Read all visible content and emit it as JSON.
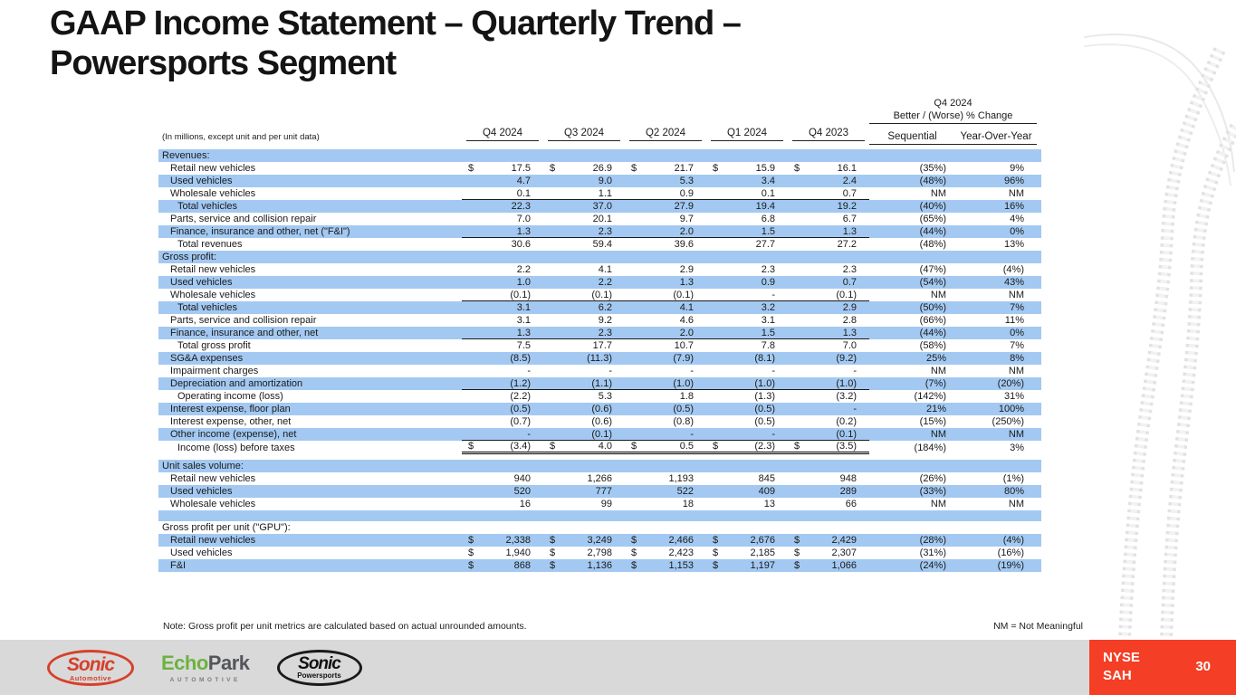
{
  "title": {
    "lines": [
      "GAAP Income Statement – Quarterly Trend –",
      "Powersports Segment"
    ]
  },
  "table": {
    "units_note": "(In millions, except unit and per unit data)",
    "group_header": {
      "line1": "Q4 2024",
      "line2": "Better / (Worse) % Change"
    },
    "columns": [
      "Q4 2024",
      "Q3 2024",
      "Q2 2024",
      "Q1 2024",
      "Q4 2023"
    ],
    "pct_columns": [
      "Sequential",
      "Year-Over-Year"
    ],
    "rows": [
      {
        "kind": "section",
        "label": "Revenues:",
        "shade": "blue"
      },
      {
        "label": "Retail new vehicles",
        "indent": 1,
        "dollar": true,
        "values": [
          "17.5",
          "26.9",
          "21.7",
          "15.9",
          "16.1"
        ],
        "seq": "(35%)",
        "yoy": "9%",
        "shade": "white"
      },
      {
        "label": "Used vehicles",
        "indent": 1,
        "values": [
          "4.7",
          "9.0",
          "5.3",
          "3.4",
          "2.4"
        ],
        "seq": "(48%)",
        "yoy": "96%",
        "shade": "blue"
      },
      {
        "label": "Wholesale vehicles",
        "indent": 1,
        "values": [
          "0.1",
          "1.1",
          "0.9",
          "0.1",
          "0.7"
        ],
        "seq": "NM",
        "yoy": "NM",
        "shade": "white",
        "underline": "single"
      },
      {
        "label": "Total vehicles",
        "indent": 2,
        "values": [
          "22.3",
          "37.0",
          "27.9",
          "19.4",
          "19.2"
        ],
        "seq": "(40%)",
        "yoy": "16%",
        "shade": "blue"
      },
      {
        "label": "Parts, service and collision repair",
        "indent": 1,
        "values": [
          "7.0",
          "20.1",
          "9.7",
          "6.8",
          "6.7"
        ],
        "seq": "(65%)",
        "yoy": "4%",
        "shade": "white"
      },
      {
        "label": "Finance, insurance and other, net (\"F&I\")",
        "indent": 1,
        "values": [
          "1.3",
          "2.3",
          "2.0",
          "1.5",
          "1.3"
        ],
        "seq": "(44%)",
        "yoy": "0%",
        "shade": "blue",
        "underline": "single"
      },
      {
        "label": "Total revenues",
        "indent": 2,
        "values": [
          "30.6",
          "59.4",
          "39.6",
          "27.7",
          "27.2"
        ],
        "seq": "(48%)",
        "yoy": "13%",
        "shade": "white"
      },
      {
        "kind": "section",
        "label": "Gross profit:",
        "shade": "blue"
      },
      {
        "label": "Retail new vehicles",
        "indent": 1,
        "values": [
          "2.2",
          "4.1",
          "2.9",
          "2.3",
          "2.3"
        ],
        "seq": "(47%)",
        "yoy": "(4%)",
        "shade": "white"
      },
      {
        "label": "Used vehicles",
        "indent": 1,
        "values": [
          "1.0",
          "2.2",
          "1.3",
          "0.9",
          "0.7"
        ],
        "seq": "(54%)",
        "yoy": "43%",
        "shade": "blue"
      },
      {
        "label": "Wholesale vehicles",
        "indent": 1,
        "values": [
          "(0.1)",
          "(0.1)",
          "(0.1)",
          "-",
          "(0.1)"
        ],
        "seq": "NM",
        "yoy": "NM",
        "shade": "white",
        "underline": "single"
      },
      {
        "label": "Total vehicles",
        "indent": 2,
        "values": [
          "3.1",
          "6.2",
          "4.1",
          "3.2",
          "2.9"
        ],
        "seq": "(50%)",
        "yoy": "7%",
        "shade": "blue"
      },
      {
        "label": "Parts, service and collision repair",
        "indent": 1,
        "values": [
          "3.1",
          "9.2",
          "4.6",
          "3.1",
          "2.8"
        ],
        "seq": "(66%)",
        "yoy": "11%",
        "shade": "white"
      },
      {
        "label": "Finance, insurance and other, net",
        "indent": 1,
        "values": [
          "1.3",
          "2.3",
          "2.0",
          "1.5",
          "1.3"
        ],
        "seq": "(44%)",
        "yoy": "0%",
        "shade": "blue",
        "underline": "single"
      },
      {
        "label": "Total gross profit",
        "indent": 2,
        "values": [
          "7.5",
          "17.7",
          "10.7",
          "7.8",
          "7.0"
        ],
        "seq": "(58%)",
        "yoy": "7%",
        "shade": "white"
      },
      {
        "label": "SG&A expenses",
        "indent": 1,
        "values": [
          "(8.5)",
          "(11.3)",
          "(7.9)",
          "(8.1)",
          "(9.2)"
        ],
        "seq": "25%",
        "yoy": "8%",
        "shade": "blue"
      },
      {
        "label": "Impairment charges",
        "indent": 1,
        "values": [
          "-",
          "-",
          "-",
          "-",
          "-"
        ],
        "seq": "NM",
        "yoy": "NM",
        "shade": "white"
      },
      {
        "label": "Depreciation and amortization",
        "indent": 1,
        "values": [
          "(1.2)",
          "(1.1)",
          "(1.0)",
          "(1.0)",
          "(1.0)"
        ],
        "seq": "(7%)",
        "yoy": "(20%)",
        "shade": "blue",
        "underline": "single"
      },
      {
        "label": "Operating income (loss)",
        "indent": 2,
        "values": [
          "(2.2)",
          "5.3",
          "1.8",
          "(1.3)",
          "(3.2)"
        ],
        "seq": "(142%)",
        "yoy": "31%",
        "shade": "white"
      },
      {
        "label": "Interest expense, floor plan",
        "indent": 1,
        "values": [
          "(0.5)",
          "(0.6)",
          "(0.5)",
          "(0.5)",
          "-"
        ],
        "seq": "21%",
        "yoy": "100%",
        "shade": "blue"
      },
      {
        "label": "Interest expense, other, net",
        "indent": 1,
        "values": [
          "(0.7)",
          "(0.6)",
          "(0.8)",
          "(0.5)",
          "(0.2)"
        ],
        "seq": "(15%)",
        "yoy": "(250%)",
        "shade": "white"
      },
      {
        "label": "Other income (expense), net",
        "indent": 1,
        "values": [
          "-",
          "(0.1)",
          "-",
          "-",
          "(0.1)"
        ],
        "seq": "NM",
        "yoy": "NM",
        "shade": "blue",
        "underline": "single"
      },
      {
        "label": "Income (loss) before taxes",
        "indent": 2,
        "dollar": true,
        "values": [
          "(3.4)",
          "4.0",
          "0.5",
          "(2.3)",
          "(3.5)"
        ],
        "seq": "(184%)",
        "yoy": "3%",
        "shade": "white",
        "underline": "double"
      },
      {
        "kind": "gap",
        "shade": "white",
        "h": 7
      },
      {
        "kind": "section",
        "label": "Unit sales volume:",
        "shade": "blue"
      },
      {
        "label": "Retail new vehicles",
        "indent": 1,
        "values": [
          "940",
          "1,266",
          "1,193",
          "845",
          "948"
        ],
        "seq": "(26%)",
        "yoy": "(1%)",
        "shade": "white"
      },
      {
        "label": "Used vehicles",
        "indent": 1,
        "values": [
          "520",
          "777",
          "522",
          "409",
          "289"
        ],
        "seq": "(33%)",
        "yoy": "80%",
        "shade": "blue"
      },
      {
        "label": "Wholesale vehicles",
        "indent": 1,
        "values": [
          "16",
          "99",
          "18",
          "13",
          "66"
        ],
        "seq": "NM",
        "yoy": "NM",
        "shade": "white"
      },
      {
        "kind": "gap",
        "shade": "blue",
        "h": 12
      },
      {
        "kind": "section",
        "label": "Gross profit per unit (\"GPU\"):",
        "shade": "white"
      },
      {
        "label": "Retail new vehicles",
        "indent": 1,
        "dollar": true,
        "values": [
          "2,338",
          "3,249",
          "2,466",
          "2,676",
          "2,429"
        ],
        "seq": "(28%)",
        "yoy": "(4%)",
        "shade": "blue"
      },
      {
        "label": "Used vehicles",
        "indent": 1,
        "dollar": true,
        "values": [
          "1,940",
          "2,798",
          "2,423",
          "2,185",
          "2,307"
        ],
        "seq": "(31%)",
        "yoy": "(16%)",
        "shade": "white"
      },
      {
        "label": "F&I",
        "indent": 1,
        "dollar": true,
        "values": [
          "868",
          "1,136",
          "1,153",
          "1,197",
          "1,066"
        ],
        "seq": "(24%)",
        "yoy": "(19%)",
        "shade": "blue"
      }
    ]
  },
  "notes": {
    "footnote": "Note: Gross profit per unit metrics are calculated based on actual unrounded amounts.",
    "nm_legend": "NM = Not Meaningful"
  },
  "footer": {
    "logos": {
      "sonic_automotive": {
        "main": "Sonic",
        "sub": "Automotive"
      },
      "echopark": {
        "main_green": "Echo",
        "main_gray": "Park",
        "sub": "AUTOMOTIVE"
      },
      "sonic_powersports": {
        "main": "Sonic",
        "sub": "Powersports"
      }
    },
    "ticker": {
      "exchange": "NYSE",
      "symbol": "SAH"
    },
    "page_number": "30"
  },
  "colors": {
    "row_blue": "#A3C9F2",
    "accent_red": "#F43E25",
    "footer_gray": "#D9D9D9"
  }
}
